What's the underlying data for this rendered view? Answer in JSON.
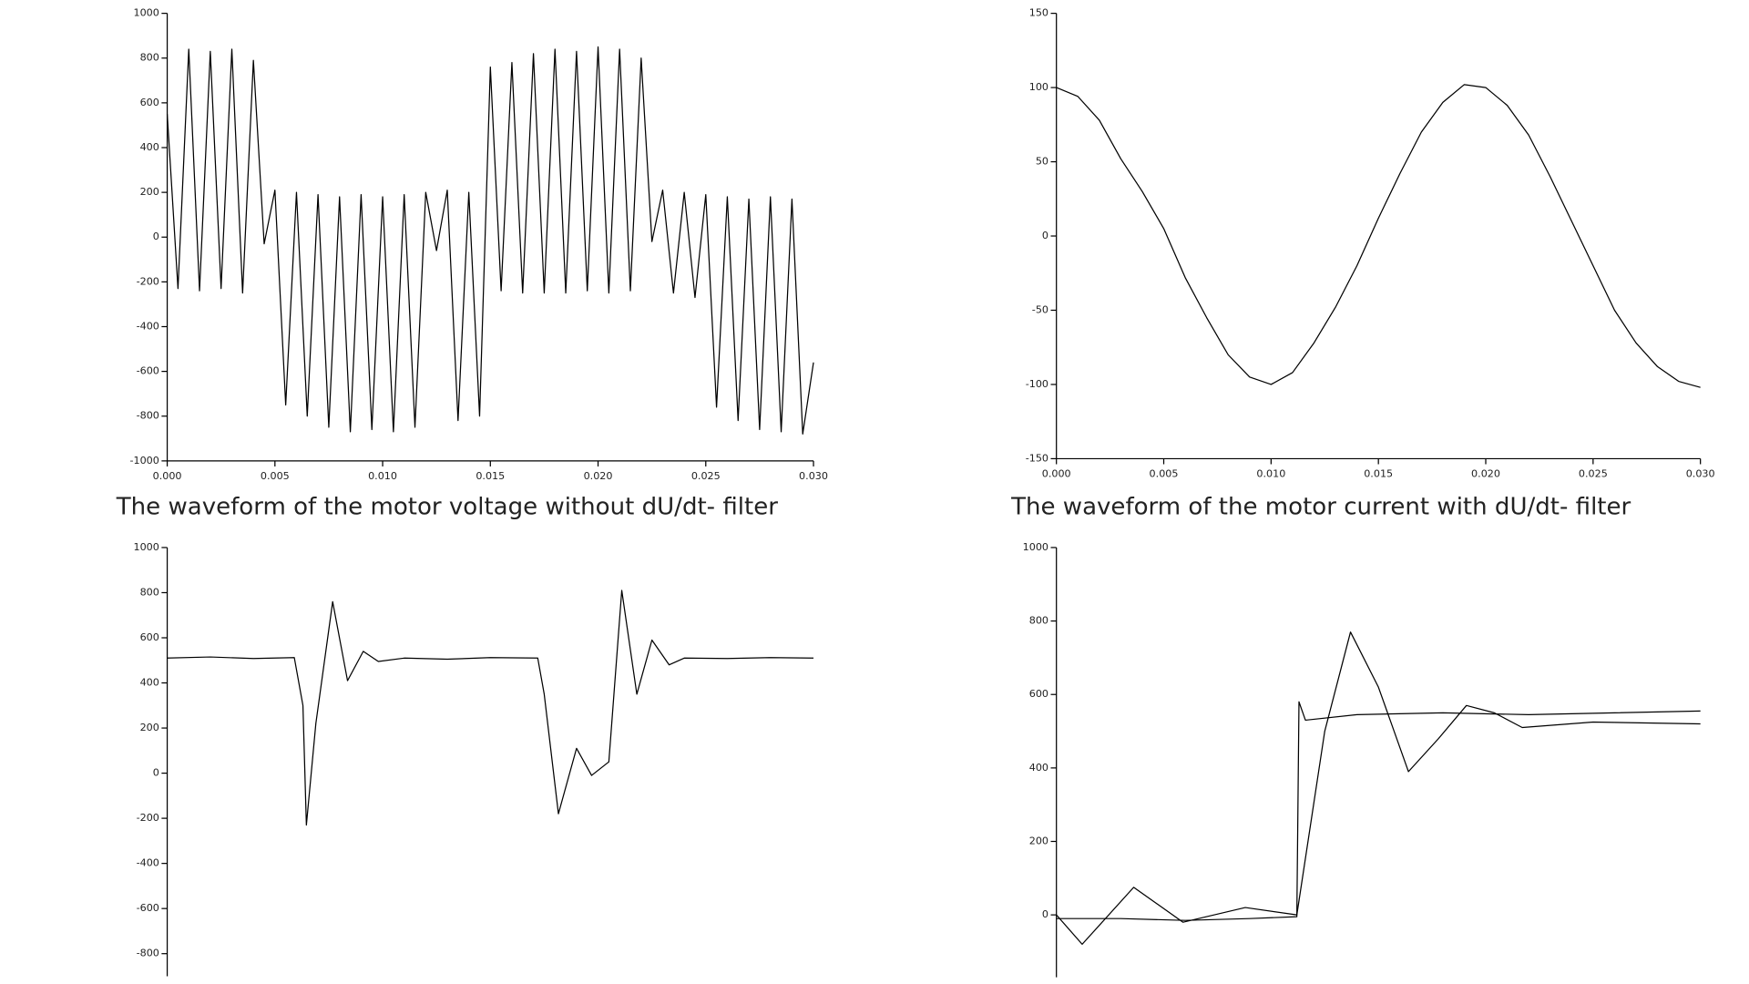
{
  "chart_data": [
    {
      "type": "line",
      "caption": "The waveform of the motor voltage without dU/dt- filter",
      "color": "#000000",
      "xlim": [
        0,
        0.03
      ],
      "ylim": [
        -1000,
        1000
      ],
      "xticks": [
        {
          "value": 0,
          "label": "0.000"
        },
        {
          "value": 0.005,
          "label": "0.005"
        },
        {
          "value": 0.01,
          "label": "0.010"
        },
        {
          "value": 0.015,
          "label": "0.015"
        },
        {
          "value": 0.02,
          "label": "0.020"
        },
        {
          "value": 0.025,
          "label": "0.025"
        },
        {
          "value": 0.03,
          "label": "0.030"
        }
      ],
      "yticks": [
        1000,
        800,
        600,
        400,
        200,
        0,
        -200,
        -400,
        -600,
        -800,
        -1000
      ],
      "x": [
        0,
        0.0005,
        0.001,
        0.0015,
        0.002,
        0.0025,
        0.003,
        0.0035,
        0.004,
        0.0045,
        0.005,
        0.0055,
        0.006,
        0.0065,
        0.007,
        0.0075,
        0.008,
        0.0085,
        0.009,
        0.0095,
        0.01,
        0.0105,
        0.011,
        0.0115,
        0.012,
        0.0125,
        0.013,
        0.0135,
        0.014,
        0.0145,
        0.015,
        0.0155,
        0.016,
        0.0165,
        0.017,
        0.0175,
        0.018,
        0.0185,
        0.019,
        0.0195,
        0.02,
        0.0205,
        0.021,
        0.0215,
        0.022,
        0.0225,
        0.023,
        0.0235,
        0.024,
        0.0245,
        0.025,
        0.0255,
        0.026,
        0.0265,
        0.027,
        0.0275,
        0.028,
        0.0285,
        0.029,
        0.0295,
        0.03
      ],
      "values": [
        550,
        -230,
        840,
        -240,
        830,
        -230,
        840,
        -250,
        790,
        -30,
        210,
        -750,
        200,
        -800,
        190,
        -850,
        180,
        -870,
        190,
        -860,
        180,
        -870,
        190,
        -850,
        200,
        -60,
        210,
        -820,
        200,
        -800,
        760,
        -240,
        780,
        -250,
        820,
        -250,
        840,
        -250,
        830,
        -240,
        850,
        -250,
        840,
        -240,
        800,
        -20,
        210,
        -250,
        200,
        -270,
        190,
        -760,
        180,
        -820,
        170,
        -860,
        180,
        -870,
        170,
        -880,
        -560
      ]
    },
    {
      "type": "line",
      "caption": "The waveform of the motor current with dU/dt- filter",
      "color": "#000000",
      "xlim": [
        0,
        0.03
      ],
      "ylim": [
        -150,
        150
      ],
      "xticks": [
        {
          "value": 0,
          "label": "0.000"
        },
        {
          "value": 0.005,
          "label": "0.005"
        },
        {
          "value": 0.01,
          "label": "0.010"
        },
        {
          "value": 0.015,
          "label": "0.015"
        },
        {
          "value": 0.02,
          "label": "0.020"
        },
        {
          "value": 0.025,
          "label": "0.025"
        },
        {
          "value": 0.03,
          "label": "0.030"
        }
      ],
      "yticks": [
        150,
        100,
        50,
        0,
        -50,
        -100,
        -150
      ],
      "x": [
        0,
        0.001,
        0.002,
        0.003,
        0.004,
        0.005,
        0.006,
        0.007,
        0.008,
        0.009,
        0.01,
        0.011,
        0.012,
        0.013,
        0.014,
        0.015,
        0.016,
        0.017,
        0.018,
        0.019,
        0.02,
        0.021,
        0.022,
        0.023,
        0.024,
        0.025,
        0.026,
        0.027,
        0.028,
        0.029,
        0.03
      ],
      "values": [
        100,
        94,
        78,
        52,
        30,
        5,
        -28,
        -55,
        -80,
        -95,
        -100,
        -92,
        -72,
        -48,
        -20,
        12,
        42,
        70,
        90,
        102,
        100,
        88,
        68,
        40,
        10,
        -20,
        -50,
        -72,
        -88,
        -98,
        -102
      ]
    },
    {
      "type": "line",
      "color": "#000000",
      "xlim": [
        0,
        0.03
      ],
      "ylim": [
        -900,
        1000
      ],
      "yticks": [
        1000,
        800,
        600,
        400,
        200,
        0,
        -200,
        -400,
        -600,
        -800
      ],
      "x": [
        0,
        0.002,
        0.004,
        0.0059,
        0.0063,
        0.00646,
        0.0069,
        0.00768,
        0.00837,
        0.0091,
        0.0098,
        0.011,
        0.013,
        0.015,
        0.0172,
        0.0175,
        0.01816,
        0.019,
        0.0197,
        0.0205,
        0.0211,
        0.0218,
        0.0225,
        0.0233,
        0.024,
        0.026,
        0.028,
        0.03
      ],
      "values": [
        510,
        515,
        508,
        512,
        300,
        -230,
        220,
        760,
        410,
        540,
        495,
        510,
        505,
        512,
        510,
        350,
        -180,
        110,
        -10,
        50,
        810,
        350,
        590,
        480,
        510,
        508,
        512,
        510
      ]
    },
    {
      "type": "line",
      "xlim": [
        0,
        0.03
      ],
      "ylim": [
        -170,
        1000
      ],
      "yticks": [
        1000,
        800,
        600,
        400,
        200,
        0
      ],
      "series": [
        {
          "color": "#000000",
          "x": [
            0,
            0.003,
            0.006,
            0.009,
            0.0112,
            0.0113,
            0.0116,
            0.014,
            0.018,
            0.022,
            0.026,
            0.03
          ],
          "values": [
            -10,
            -10,
            -15,
            -10,
            -5,
            580,
            530,
            545,
            550,
            545,
            550,
            555
          ]
        },
        {
          "color": "#000000",
          "x": [
            0,
            0.0012,
            0.0036,
            0.0059,
            0.0088,
            0.0112,
            0.0125,
            0.0137,
            0.015,
            0.0164,
            0.0178,
            0.0191,
            0.0204,
            0.0217,
            0.025,
            0.03
          ],
          "values": [
            0,
            -80,
            75,
            -20,
            20,
            0,
            500,
            770,
            620,
            390,
            480,
            570,
            550,
            510,
            525,
            520
          ]
        }
      ]
    }
  ]
}
